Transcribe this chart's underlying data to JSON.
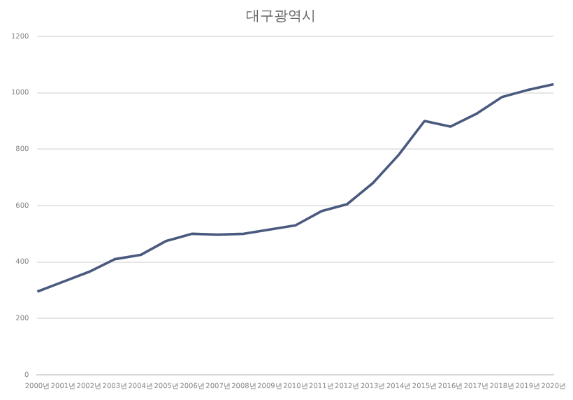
{
  "chart_data": {
    "type": "line",
    "title": "대구광역시",
    "categories": [
      "2000년",
      "2001년",
      "2002년",
      "2003년",
      "2004년",
      "2005년",
      "2006년",
      "2007년",
      "2008년",
      "2009년",
      "2010년",
      "2011년",
      "2012년",
      "2013년",
      "2014년",
      "2015년",
      "2016년",
      "2017년",
      "2018년",
      "2019년",
      "2020년"
    ],
    "series": [
      {
        "color": "#4a5a7e",
        "values": [
          295,
          330,
          365,
          410,
          425,
          475,
          500,
          497,
          500,
          515,
          530,
          580,
          605,
          680,
          780,
          900,
          880,
          925,
          985,
          1010,
          1030
        ]
      }
    ],
    "ylim": [
      0,
      1200
    ],
    "yticks": [
      0,
      200,
      400,
      600,
      800,
      1000,
      1200
    ],
    "grid": "y",
    "marker": "none"
  }
}
